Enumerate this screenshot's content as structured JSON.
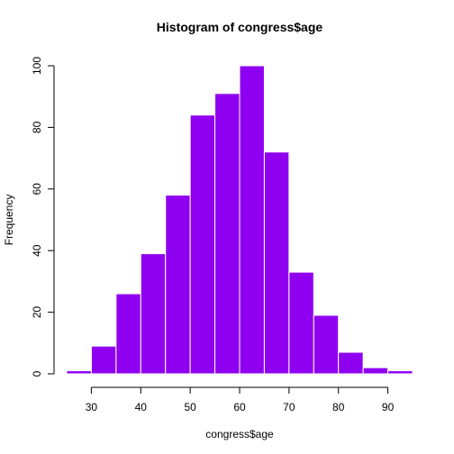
{
  "chart_data": {
    "type": "bar",
    "title": "Histogram of congress$age",
    "xlabel": "congress$age",
    "ylabel": "Frequency",
    "bins": [
      {
        "start": 25,
        "end": 30,
        "count": 1
      },
      {
        "start": 30,
        "end": 35,
        "count": 9
      },
      {
        "start": 35,
        "end": 40,
        "count": 26
      },
      {
        "start": 40,
        "end": 45,
        "count": 39
      },
      {
        "start": 45,
        "end": 50,
        "count": 58
      },
      {
        "start": 50,
        "end": 55,
        "count": 84
      },
      {
        "start": 55,
        "end": 60,
        "count": 91
      },
      {
        "start": 60,
        "end": 65,
        "count": 100
      },
      {
        "start": 65,
        "end": 70,
        "count": 72
      },
      {
        "start": 70,
        "end": 75,
        "count": 33
      },
      {
        "start": 75,
        "end": 80,
        "count": 19
      },
      {
        "start": 80,
        "end": 85,
        "count": 7
      },
      {
        "start": 85,
        "end": 90,
        "count": 2
      },
      {
        "start": 90,
        "end": 95,
        "count": 1
      }
    ],
    "xticks": [
      "30",
      "40",
      "50",
      "60",
      "70",
      "80",
      "90"
    ],
    "yticks": [
      "0",
      "20",
      "40",
      "60",
      "80",
      "100"
    ],
    "xlim": [
      25,
      95
    ],
    "ylim": [
      0,
      100
    ],
    "bar_color": "#8f00f0",
    "bar_edge_color": "#ffffff",
    "grid": false
  }
}
